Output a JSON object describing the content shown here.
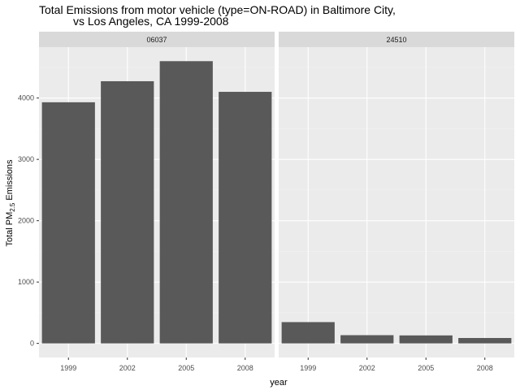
{
  "chart_data": {
    "type": "bar",
    "title_line1": "Total Emissions from motor vehicle (type=ON-ROAD) in Baltimore City,",
    "title_line2": "vs Los Angeles, CA 1999-2008",
    "xlabel": "year",
    "ylabel": {
      "prefix": "Total PM",
      "subscript": "2.5",
      "suffix": " Emissions"
    },
    "categories": [
      "1999",
      "2002",
      "2005",
      "2008"
    ],
    "yticks": [
      0,
      1000,
      2000,
      3000,
      4000
    ],
    "ylim": [
      -230,
      4830
    ],
    "grid": true,
    "facets": [
      {
        "label": "06037",
        "values": [
          3931,
          4274,
          4601,
          4101
        ]
      },
      {
        "label": "24510",
        "values": [
          347,
          134,
          130,
          88
        ]
      }
    ],
    "colors": {
      "bar": "#595959",
      "panel": "#ebebeb",
      "strip": "#d9d9d9",
      "grid_major": "#ffffff",
      "grid_minor": "#f2f2f2"
    }
  }
}
